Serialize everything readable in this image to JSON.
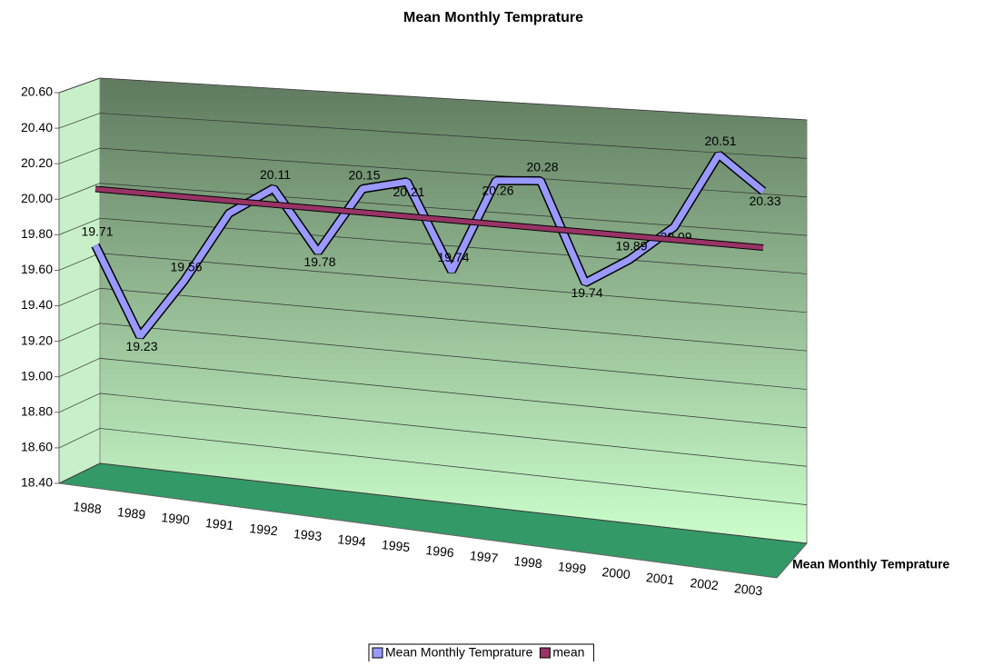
{
  "chart_data": {
    "type": "line3d",
    "title": "Mean Monthly Temprature",
    "categories": [
      "1988",
      "1989",
      "1990",
      "1991",
      "1992",
      "1993",
      "1994",
      "1995",
      "1996",
      "1997",
      "1998",
      "1999",
      "2000",
      "2001",
      "2002",
      "2003"
    ],
    "series": [
      {
        "name": "Mean Monthly Temprature",
        "color": "#9999ff",
        "values": [
          19.71,
          19.23,
          19.56,
          19.95,
          20.11,
          19.78,
          20.15,
          20.21,
          19.74,
          20.26,
          20.28,
          19.74,
          19.89,
          20.09,
          20.51,
          20.33
        ],
        "value_labels": [
          "19.71",
          "19.23",
          "19.56",
          null,
          "20.11",
          "19.78",
          "20.15",
          "20.21",
          "19.74",
          "20.26",
          "20.28",
          "19.74",
          "19.89",
          "20.09",
          "20.51",
          "20.33"
        ]
      },
      {
        "name": "mean",
        "color": "#993366",
        "values": [
          19.97,
          19.97,
          19.97,
          19.97,
          19.97,
          19.97,
          19.97,
          19.97,
          19.97,
          19.97,
          19.97,
          19.97,
          19.97,
          19.97,
          19.97,
          19.97
        ]
      }
    ],
    "ylim": [
      18.4,
      20.6
    ],
    "yticks": [
      {
        "value": 18.4,
        "label": "18.40"
      },
      {
        "value": 18.6,
        "label": "18.60"
      },
      {
        "value": 18.8,
        "label": "18.80"
      },
      {
        "value": 19.0,
        "label": "19.00"
      },
      {
        "value": 19.2,
        "label": "19.20"
      },
      {
        "value": 19.4,
        "label": "19.40"
      },
      {
        "value": 19.6,
        "label": "19.60"
      },
      {
        "value": 19.8,
        "label": "19.80"
      },
      {
        "value": 20.0,
        "label": "20.00"
      },
      {
        "value": 20.2,
        "label": "20.20"
      },
      {
        "value": 20.4,
        "label": "20.40"
      },
      {
        "value": 20.6,
        "label": "20.60"
      }
    ],
    "grid": true
  }
}
